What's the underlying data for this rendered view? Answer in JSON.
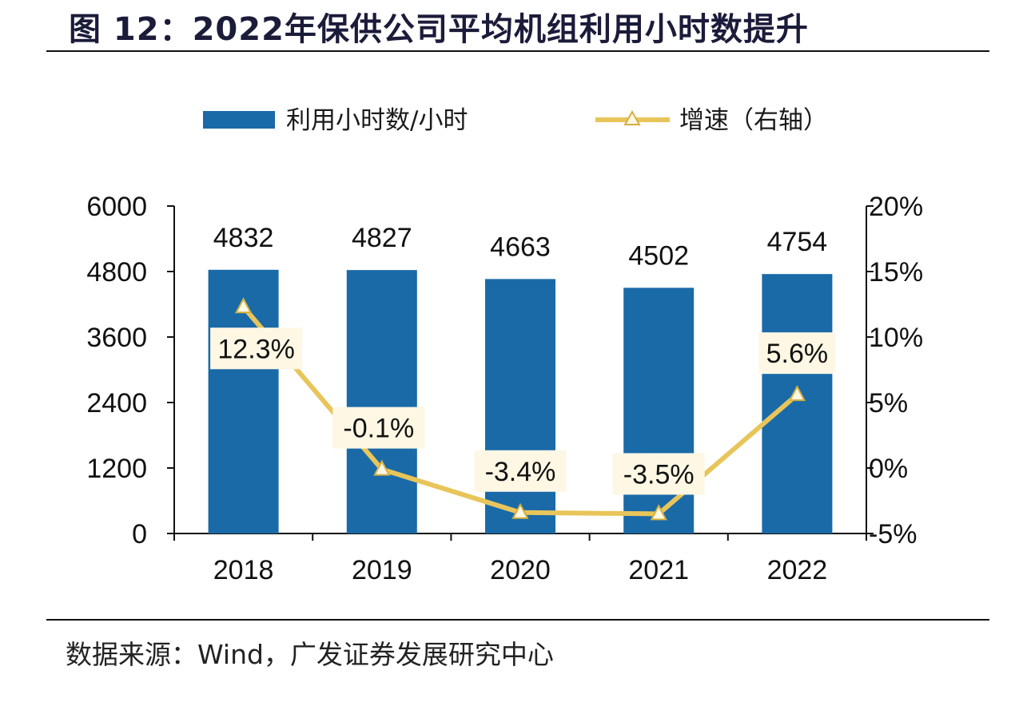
{
  "figure": {
    "title": "图 12：2022年保供公司平均机组利用小时数提升",
    "source": "数据来源：Wind，广发证券发展研究中心"
  },
  "colors": {
    "bar": "#1a6aa8",
    "line": "#e8c55a",
    "label_bg": "#fdf7e4"
  },
  "chart_data": {
    "type": "bar",
    "categories": [
      "2018",
      "2019",
      "2020",
      "2021",
      "2022"
    ],
    "series": [
      {
        "name": "利用小时数/小时",
        "type": "bar",
        "axis": "left",
        "values": [
          4832,
          4827,
          4663,
          4502,
          4754
        ],
        "labels": [
          "4832",
          "4827",
          "4663",
          "4502",
          "4754"
        ]
      },
      {
        "name": "增速（右轴）",
        "type": "line",
        "axis": "right",
        "marker": "triangle",
        "values": [
          12.3,
          -0.1,
          -3.4,
          -3.5,
          5.6
        ],
        "labels": [
          "12.3%",
          "-0.1%",
          "-3.4%",
          "-3.5%",
          "5.6%"
        ]
      }
    ],
    "y_left": {
      "ylim": [
        0,
        6000
      ],
      "ticks": [
        0,
        1200,
        2400,
        3600,
        4800,
        6000
      ],
      "tick_labels": [
        "0",
        "1200",
        "2400",
        "3600",
        "4800",
        "6000"
      ]
    },
    "y_right": {
      "ylim": [
        -5,
        20
      ],
      "ticks": [
        -5,
        0,
        5,
        10,
        15,
        20
      ],
      "tick_labels": [
        "-5%",
        "0%",
        "5%",
        "10%",
        "15%",
        "20%"
      ]
    },
    "legend_position": "top",
    "grid": false
  }
}
